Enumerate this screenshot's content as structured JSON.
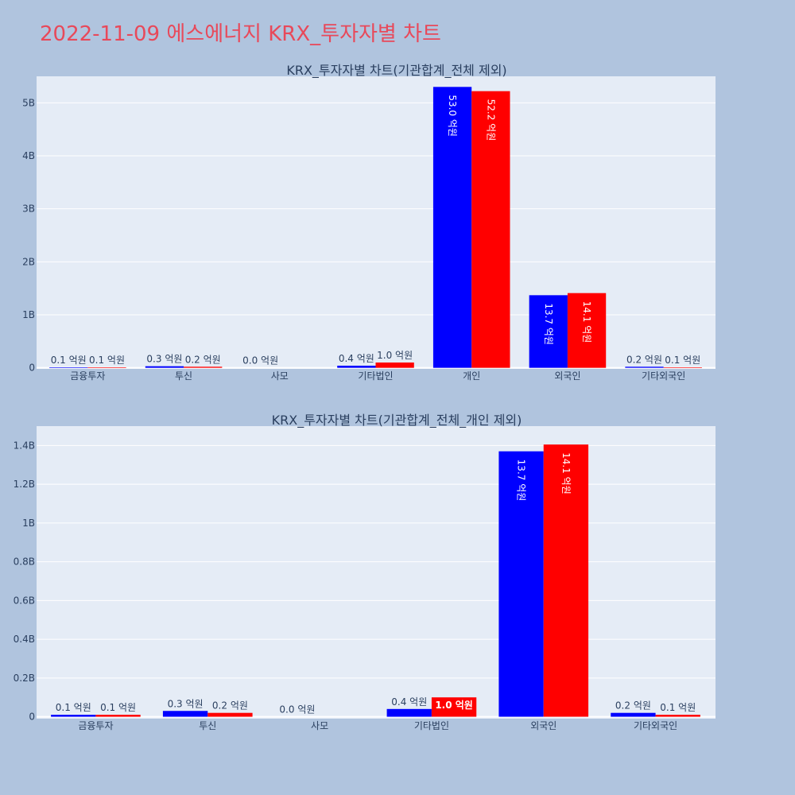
{
  "title": "2022-11-09 에스에너지 KRX_투자자별 차트",
  "colors": {
    "series_a": "#0000ff",
    "series_b": "#ff0000",
    "plot_bg": "#e5ecf6",
    "page_bg": "#b0c4de",
    "title": "#e8495a",
    "axis_text": "#2a3f5f"
  },
  "chart_data": [
    {
      "type": "bar",
      "title": "KRX_투자자별 차트(기관합계_전체 제외)",
      "categories": [
        "금융투자",
        "투신",
        "사모",
        "기타법인",
        "개인",
        "외국인",
        "기타외국인"
      ],
      "series": [
        {
          "values": [
            0.01,
            0.03,
            0.0,
            0.04,
            5.3,
            1.37,
            0.02
          ],
          "labels": [
            "0.1 억원",
            "0.3 억원",
            "0.0 억원",
            "0.4 억원",
            "53.0 억원",
            "13.7 억원",
            "0.2 억원"
          ]
        },
        {
          "values": [
            0.01,
            0.02,
            null,
            0.1,
            5.22,
            1.41,
            0.01
          ],
          "labels": [
            "0.1 억원",
            "0.2 억원",
            "",
            "1.0 억원",
            "52.2 억원",
            "14.1 억원",
            "0.1 억원"
          ]
        }
      ],
      "yticks": [
        0,
        1,
        2,
        3,
        4,
        5
      ],
      "ytick_labels": [
        "0",
        "1B",
        "2B",
        "3B",
        "4B",
        "5B"
      ],
      "ylim": [
        -0.02,
        5.5
      ],
      "grid": true
    },
    {
      "type": "bar",
      "title": "KRX_투자자별 차트(기관합계_전체_개인 제외)",
      "categories": [
        "금융투자",
        "투신",
        "사모",
        "기타법인",
        "외국인",
        "기타외국인"
      ],
      "series": [
        {
          "values": [
            0.01,
            0.03,
            0.0,
            0.04,
            1.37,
            0.02
          ],
          "labels": [
            "0.1 억원",
            "0.3 억원",
            "0.0 억원",
            "0.4 억원",
            "13.7 억원",
            "0.2 억원"
          ]
        },
        {
          "values": [
            0.01,
            0.02,
            null,
            0.1,
            1.405,
            0.01
          ],
          "labels": [
            "0.1 억원",
            "0.2 억원",
            "",
            "1.0 억원",
            "14.1 억원",
            "0.1 억원"
          ]
        }
      ],
      "yticks": [
        0,
        0.2,
        0.4,
        0.6,
        0.8,
        1.0,
        1.2,
        1.4
      ],
      "ytick_labels": [
        "0",
        "0.2B",
        "0.4B",
        "0.6B",
        "0.8B",
        "1B",
        "1.2B",
        "1.4B"
      ],
      "ylim": [
        -0.01,
        1.5
      ],
      "grid": true
    }
  ]
}
